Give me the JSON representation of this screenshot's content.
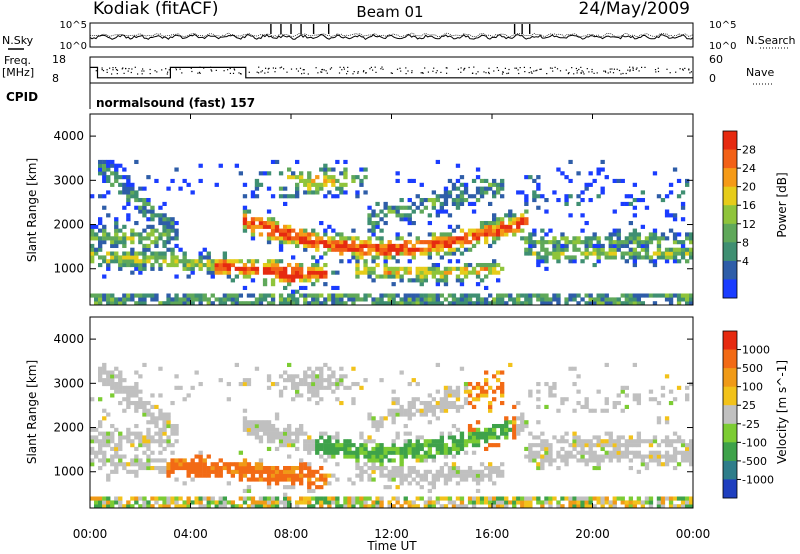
{
  "header": {
    "station": "Kodiak (fitACF)",
    "beam": "Beam 01",
    "date": "24/May/2009"
  },
  "chart_data": [
    {
      "type": "line",
      "panel": "noise",
      "left_label": "N.Sky",
      "right_label": "N.Search",
      "left_ticks": [
        "10^5",
        "10^0"
      ],
      "right_ticks": [
        "10^5",
        "10^0"
      ],
      "series_colors": [
        "#000000"
      ]
    },
    {
      "type": "line",
      "panel": "frequency",
      "left_label_1": "Freq.",
      "left_label_2": "[MHz]",
      "right_label": "Nave",
      "left_ticks": [
        "18",
        "8"
      ],
      "right_ticks": [
        "60",
        "0"
      ],
      "freq_steps": [
        {
          "t": [
            0.0,
            0.3
          ],
          "f": 14
        },
        {
          "t": [
            0.3,
            3.2
          ],
          "f": 10
        },
        {
          "t": [
            3.2,
            6.2
          ],
          "f": 14
        },
        {
          "t": [
            6.2,
            24.0
          ],
          "f": 10
        }
      ]
    },
    {
      "type": "text",
      "panel": "cpid",
      "label": "CPID",
      "value": "normalsound (fast) 157"
    },
    {
      "type": "heatmap",
      "panel": "power",
      "ylabel": "Slant Range [km]",
      "y_ticks": [
        1000,
        2000,
        3000,
        4000
      ],
      "ylim": [
        180,
        4500
      ],
      "xlim": [
        0,
        24
      ],
      "colorbar_label": "Power [dB]",
      "colorbar_ticks": [
        "28",
        "24",
        "20",
        "16",
        "12",
        "8",
        "4"
      ],
      "colorbar_colors": [
        "#1a3cff",
        "#2e5da8",
        "#3f8f72",
        "#5fa85a",
        "#8fc43b",
        "#e6cc1a",
        "#f59a17",
        "#f26016",
        "#e62a10"
      ]
    },
    {
      "type": "heatmap",
      "panel": "velocity",
      "ylabel": "Slant Range [km]",
      "y_ticks": [
        1000,
        2000,
        3000,
        4000
      ],
      "ylim": [
        180,
        4500
      ],
      "xlim": [
        0,
        24
      ],
      "colorbar_label": "Velocity [m s^-1]",
      "colorbar_ticks": [
        "1000",
        "500",
        "100",
        "25",
        "-25",
        "-100",
        "-500",
        "-1000"
      ],
      "colorbar_colors": [
        "#1f3fbf",
        "#2e7d8a",
        "#3ea24a",
        "#7ccc33",
        "#c0c0c0",
        "#f2c21a",
        "#f09a17",
        "#f26a15",
        "#e62a10"
      ]
    }
  ],
  "x_axis": {
    "ticks": [
      "00:00",
      "04:00",
      "08:00",
      "12:00",
      "16:00",
      "20:00",
      "00:00"
    ],
    "label": "Time UT"
  }
}
